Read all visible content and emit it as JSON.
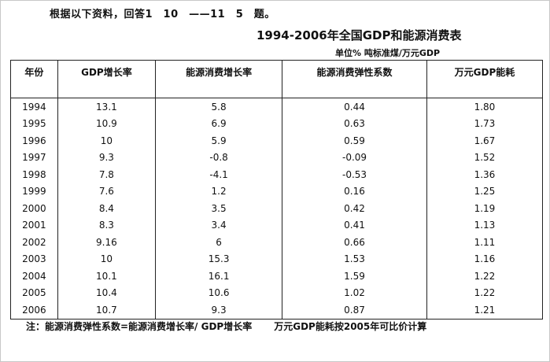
{
  "intro": "根据以下资料，回答1　10　——11　5　题。",
  "title": "1994-2006年全国GDP和能源消费表",
  "unit": "单位% 吨标准煤/万元GDP",
  "table": {
    "headers": [
      "年份",
      "GDP增长率",
      "能源消费增长率",
      "能源消费弹性系数",
      "万元GDP能耗"
    ],
    "rows": [
      [
        "1994",
        "13.1",
        "5.8",
        "0.44",
        "1.80"
      ],
      [
        "1995",
        "10.9",
        "6.9",
        "0.63",
        "1.73"
      ],
      [
        "1996",
        "10",
        "5.9",
        "0.59",
        "1.67"
      ],
      [
        "1997",
        "9.3",
        "-0.8",
        "-0.09",
        "1.52"
      ],
      [
        "1998",
        "7.8",
        "-4.1",
        "-0.53",
        "1.36"
      ],
      [
        "1999",
        "7.6",
        "1.2",
        "0.16",
        "1.25"
      ],
      [
        "2000",
        "8.4",
        "3.5",
        "0.42",
        "1.19"
      ],
      [
        "2001",
        "8.3",
        "3.4",
        "0.41",
        "1.13"
      ],
      [
        "2002",
        "9.16",
        "6",
        "0.66",
        "1.11"
      ],
      [
        "2003",
        "10",
        "15.3",
        "1.53",
        "1.16"
      ],
      [
        "2004",
        "10.1",
        "16.1",
        "1.59",
        "1.22"
      ],
      [
        "2005",
        "10.4",
        "10.6",
        "1.02",
        "1.22"
      ],
      [
        "2006",
        "10.7",
        "9.3",
        "0.87",
        "1.21"
      ]
    ]
  },
  "note": {
    "part1": "注：能源消费弹性系数=能源消费增长率/ GDP增长率",
    "part2": "万元GDP能耗按2005年可比价计算"
  }
}
